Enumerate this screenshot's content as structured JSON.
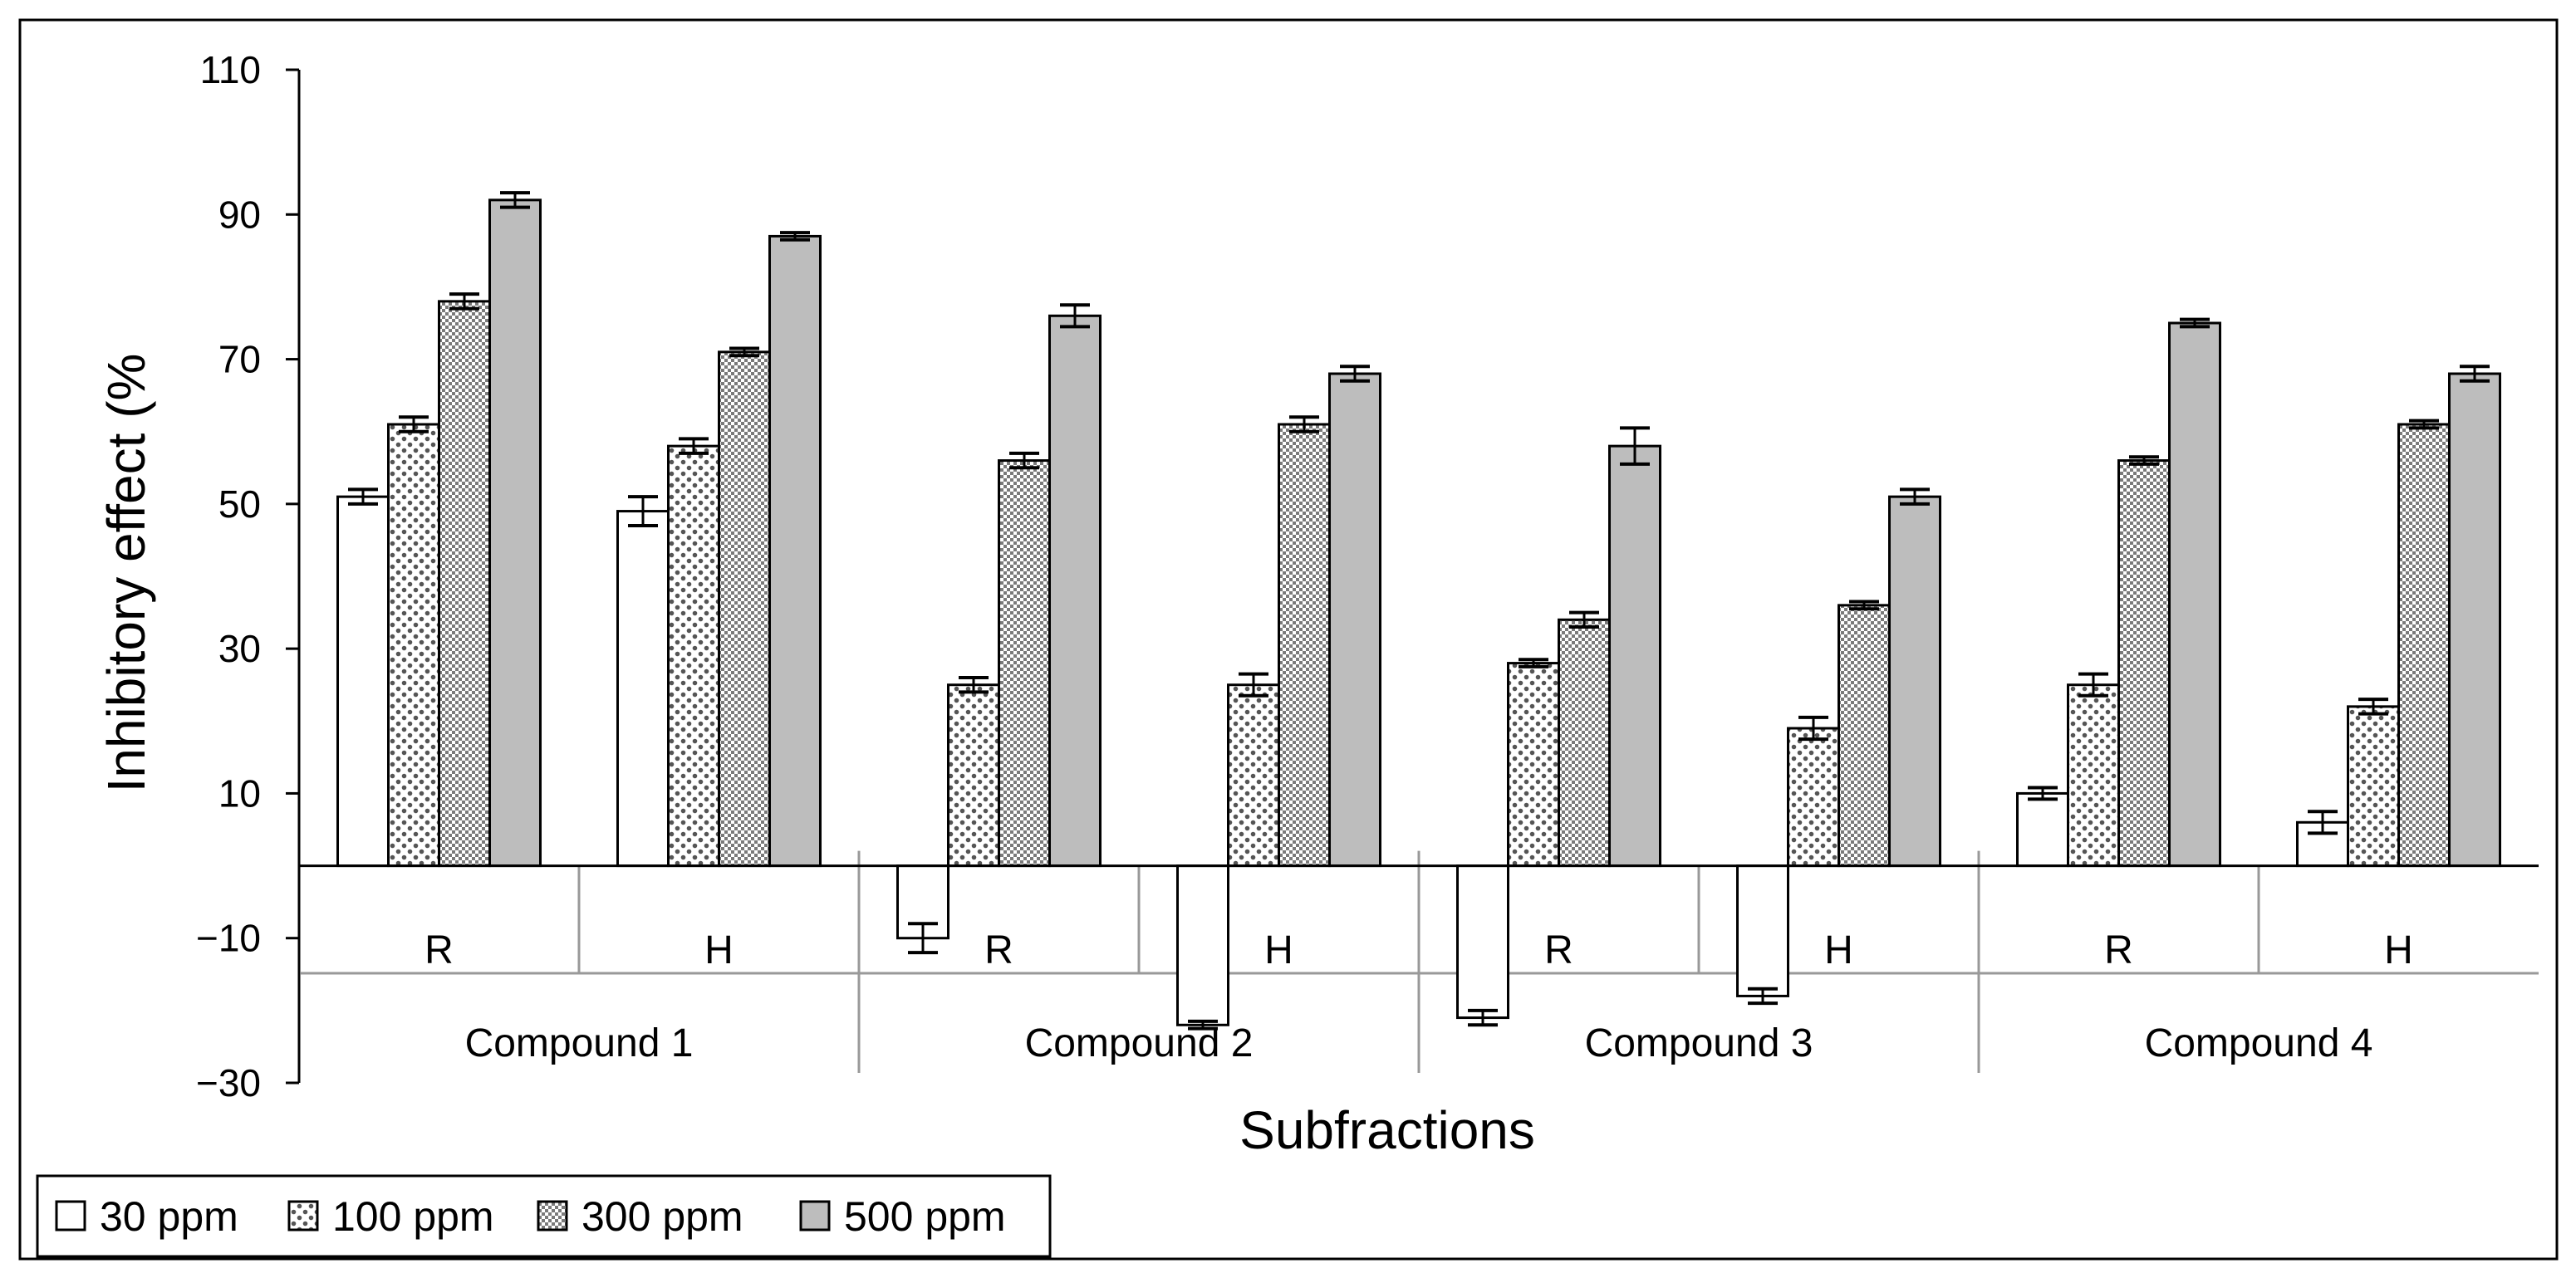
{
  "chart_data": {
    "type": "bar",
    "xlabel": "Subfractions",
    "ylabel": "Inhibitory effect (%",
    "ylim": [
      -30,
      110
    ],
    "yticks": [
      110,
      90,
      70,
      50,
      30,
      10,
      -10,
      -30
    ],
    "grid": false,
    "legend_position": "bottom-left",
    "groups": [
      "Compound 1",
      "Compound 2",
      "Compound 3",
      "Compound 4"
    ],
    "categories": [
      "R",
      "H",
      "R",
      "H",
      "R",
      "H",
      "R",
      "H"
    ],
    "series": [
      {
        "name": "30 ppm",
        "pattern": "white",
        "values": [
          51,
          49,
          -10,
          -22,
          -21,
          -18,
          10,
          6
        ],
        "errors": [
          1.0,
          2.0,
          2.0,
          0.5,
          1.0,
          1.0,
          0.8,
          1.5
        ]
      },
      {
        "name": "100 ppm",
        "pattern": "dots",
        "values": [
          61,
          58,
          25,
          25,
          28,
          19,
          25,
          22
        ],
        "errors": [
          1.0,
          1.0,
          1.0,
          1.5,
          0.5,
          1.5,
          1.5,
          1.0
        ]
      },
      {
        "name": "300 ppm",
        "pattern": "checker",
        "values": [
          78,
          71,
          56,
          61,
          34,
          36,
          56,
          61
        ],
        "errors": [
          1.0,
          0.5,
          1.0,
          1.0,
          1.0,
          0.5,
          0.5,
          0.5
        ]
      },
      {
        "name": "500 ppm",
        "pattern": "gray",
        "values": [
          92,
          87,
          76,
          68,
          58,
          51,
          75,
          68
        ],
        "errors": [
          1.0,
          0.5,
          1.5,
          1.0,
          2.5,
          1.0,
          0.5,
          1.0
        ]
      }
    ]
  },
  "colors": {
    "bar_outline": "#000000",
    "bar_500": "#bdbdbd",
    "dot_fill": "#555555",
    "checker_fill": "#7a7a7a",
    "frame": "#000000",
    "divider": "#999999"
  }
}
